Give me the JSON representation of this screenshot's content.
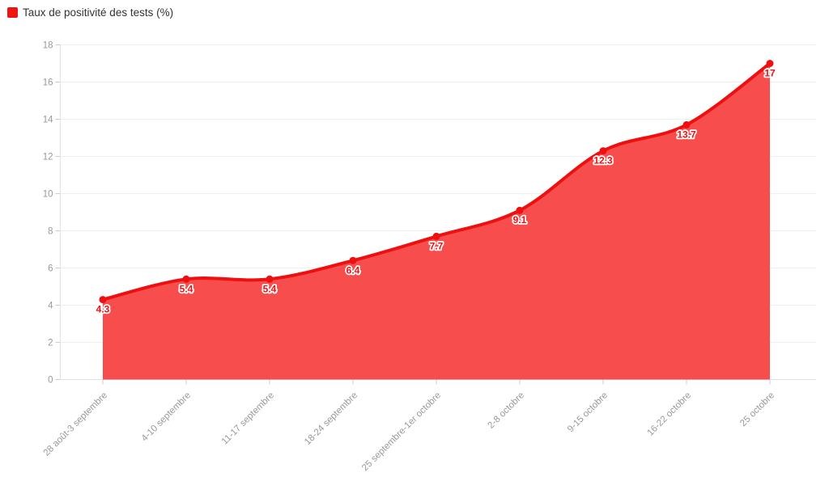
{
  "legend": {
    "label": "Taux de positivité des tests (%)"
  },
  "chart_data": {
    "type": "area",
    "title": "",
    "xlabel": "",
    "ylabel": "",
    "categories": [
      "28 août-3 septembre",
      "4-10 septembre",
      "11-17 septembre",
      "18-24 septembre",
      "25 septembre-1er octobre",
      "2-8 octobre",
      "9-15 octobre",
      "16-22 octobre",
      "25 octobre"
    ],
    "series": [
      {
        "name": "Taux de positivité des tests (%)",
        "values": [
          4.3,
          5.4,
          5.4,
          6.4,
          7.7,
          9.1,
          12.3,
          13.7,
          17
        ]
      }
    ],
    "data_labels": [
      "4.3",
      "5.4",
      "5.4",
      "6.4",
      "7.7",
      "9.1",
      "12.3",
      "13.7",
      "17"
    ],
    "ylim": [
      0,
      18
    ],
    "y_ticks": [
      0,
      2,
      4,
      6,
      8,
      10,
      12,
      14,
      16,
      18
    ],
    "grid": true,
    "smooth": true,
    "legend_position": "top-left",
    "x_label_rotation_deg": 45,
    "colors": {
      "line": "#ee1010",
      "fill": "#f74d4d",
      "point": "#ee1010",
      "data_label": "#ee1010",
      "legend_marker": "#f21212",
      "axis_text": "#999999",
      "grid_line": "#efefef",
      "axis_line": "#e2e2e2",
      "tick": "#cccccc"
    }
  }
}
